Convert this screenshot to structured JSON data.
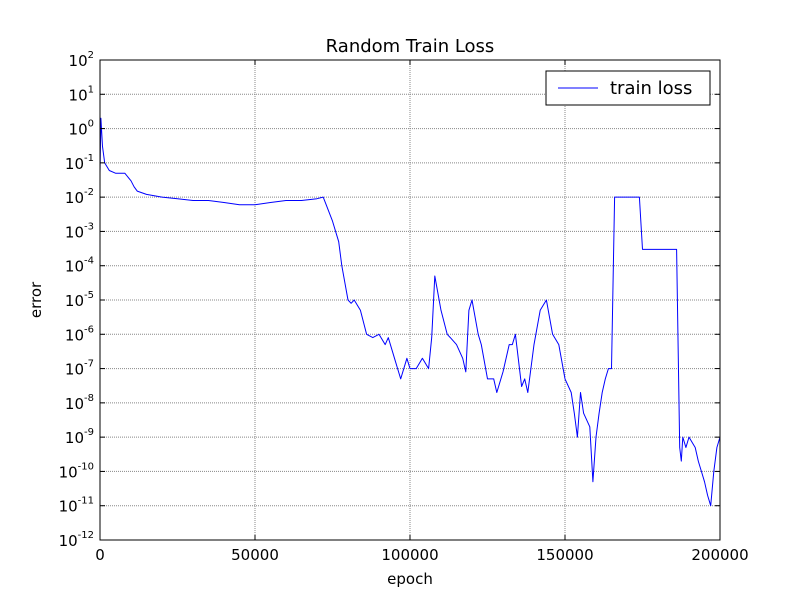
{
  "chart_data": {
    "type": "line",
    "title": "Random Train Loss",
    "xlabel": "epoch",
    "ylabel": "error",
    "xlim": [
      0,
      200000
    ],
    "ylim": [
      1e-12,
      100
    ],
    "yscale": "log",
    "grid": true,
    "legend": {
      "position": "top-right",
      "entries": [
        "train loss"
      ]
    },
    "colors": {
      "series": "#0000ff",
      "grid": "#888888",
      "frame": "#000000"
    },
    "x_ticks": [
      {
        "value": 0,
        "label": "0"
      },
      {
        "value": 50000,
        "label": "50000"
      },
      {
        "value": 100000,
        "label": "100000"
      },
      {
        "value": 150000,
        "label": "150000"
      },
      {
        "value": 200000,
        "label": "200000"
      }
    ],
    "y_ticks": [
      {
        "exp": 2,
        "base": "10",
        "sup": "2"
      },
      {
        "exp": 1,
        "base": "10",
        "sup": "1"
      },
      {
        "exp": 0,
        "base": "10",
        "sup": "0"
      },
      {
        "exp": -1,
        "base": "10",
        "sup": "-1"
      },
      {
        "exp": -2,
        "base": "10",
        "sup": "-2"
      },
      {
        "exp": -3,
        "base": "10",
        "sup": "-3"
      },
      {
        "exp": -4,
        "base": "10",
        "sup": "-4"
      },
      {
        "exp": -5,
        "base": "10",
        "sup": "-5"
      },
      {
        "exp": -6,
        "base": "10",
        "sup": "-6"
      },
      {
        "exp": -7,
        "base": "10",
        "sup": "-7"
      },
      {
        "exp": -8,
        "base": "10",
        "sup": "-8"
      },
      {
        "exp": -9,
        "base": "10",
        "sup": "-9"
      },
      {
        "exp": -10,
        "base": "10",
        "sup": "-10"
      },
      {
        "exp": -11,
        "base": "10",
        "sup": "-11"
      },
      {
        "exp": -12,
        "base": "10",
        "sup": "-12"
      }
    ],
    "series": [
      {
        "name": "train loss",
        "x": [
          0,
          300,
          800,
          1500,
          3000,
          5000,
          8000,
          10000,
          11000,
          12000,
          15000,
          20000,
          25000,
          30000,
          35000,
          40000,
          45000,
          50000,
          55000,
          60000,
          65000,
          70000,
          72000,
          75000,
          77000,
          78000,
          80000,
          81000,
          82000,
          84000,
          86000,
          88000,
          90000,
          92000,
          93000,
          95000,
          96000,
          97000,
          99000,
          100000,
          102000,
          104000,
          106000,
          107000,
          108000,
          110000,
          112000,
          113000,
          115000,
          117000,
          118000,
          119000,
          120000,
          122000,
          123000,
          125000,
          127000,
          128000,
          130000,
          132000,
          133000,
          134000,
          136000,
          137000,
          138000,
          140000,
          142000,
          144000,
          146000,
          148000,
          150000,
          152000,
          153000,
          154000,
          155000,
          156000,
          158000,
          159000,
          160000,
          161000,
          162000,
          163000,
          164000,
          165000,
          166000,
          168000,
          170000,
          172000,
          174000,
          175000,
          176000,
          178000,
          180000,
          182000,
          184000,
          186000,
          187000,
          187500,
          188000,
          189000,
          190000,
          192000,
          193000,
          194000,
          195000,
          196000,
          197000,
          198000,
          199000,
          200000
        ],
        "y": [
          0.05,
          2.0,
          0.3,
          0.1,
          0.06,
          0.05,
          0.05,
          0.03,
          0.02,
          0.015,
          0.012,
          0.01,
          0.009,
          0.008,
          0.008,
          0.007,
          0.006,
          0.006,
          0.007,
          0.008,
          0.008,
          0.009,
          0.01,
          0.002,
          0.0005,
          0.0001,
          1e-05,
          8e-06,
          1e-05,
          5e-06,
          1e-06,
          8e-07,
          1e-06,
          5e-07,
          8e-07,
          2e-07,
          1e-07,
          5e-08,
          2e-07,
          1e-07,
          1e-07,
          2e-07,
          1e-07,
          8e-07,
          5e-05,
          5e-06,
          1e-06,
          8e-07,
          5e-07,
          2e-07,
          8e-08,
          5e-06,
          1e-05,
          1e-06,
          5e-07,
          5e-08,
          5e-08,
          2e-08,
          8e-08,
          5e-07,
          5e-07,
          1e-06,
          3e-08,
          5e-08,
          2e-08,
          5e-07,
          5e-06,
          1e-05,
          1e-06,
          5e-07,
          5e-08,
          2e-08,
          5e-09,
          1e-09,
          2e-08,
          5e-09,
          2e-09,
          5e-11,
          1e-09,
          5e-09,
          2e-08,
          5e-08,
          1e-07,
          1e-07,
          0.01,
          0.01,
          0.01,
          0.01,
          0.01,
          0.0003,
          0.0003,
          0.0003,
          0.0003,
          0.0003,
          0.0003,
          0.0003,
          5e-10,
          2e-10,
          1e-09,
          5e-10,
          1e-09,
          5e-10,
          2e-10,
          1e-10,
          5e-11,
          2e-11,
          1e-11,
          1e-10,
          5e-10,
          1e-09
        ]
      }
    ]
  }
}
